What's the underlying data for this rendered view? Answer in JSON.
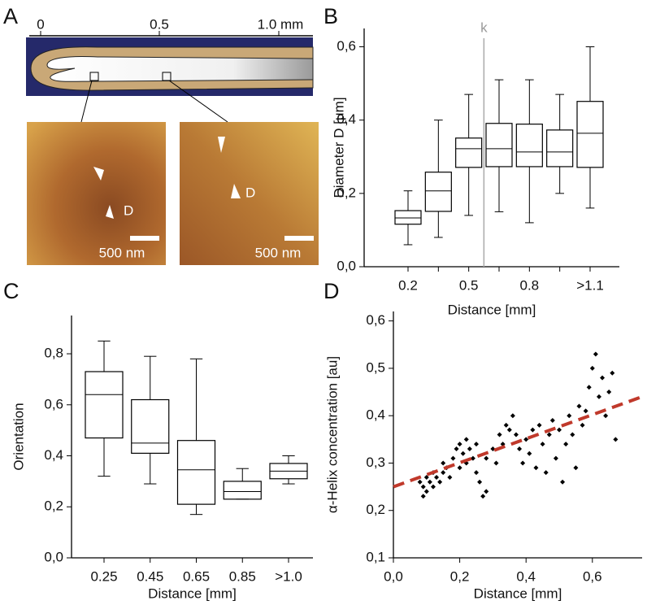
{
  "panel_labels": [
    "A",
    "B",
    "C",
    "D"
  ],
  "schematic": {
    "scale_labels": [
      "0",
      "0.5",
      "1.0 mm"
    ],
    "images": [
      {
        "marker": "D",
        "scale_bar": "500 nm"
      },
      {
        "marker": "D",
        "scale_bar": "500 nm"
      }
    ]
  },
  "chart_data": [
    {
      "type": "box",
      "ylabel": "Diameter D [μm]",
      "xlabel": "Distance [mm]",
      "color": "#000000",
      "categories": [
        "0.2",
        null,
        "0.5",
        null,
        "0.8",
        null,
        ">1.1"
      ],
      "boxes": [
        {
          "whisker_low": 0.06,
          "q1": 0.116,
          "median": 0.133,
          "q3": 0.153,
          "whisker_high": 0.207
        },
        {
          "whisker_low": 0.08,
          "q1": 0.151,
          "median": 0.207,
          "q3": 0.258,
          "whisker_high": 0.4
        },
        {
          "whisker_low": 0.14,
          "q1": 0.271,
          "median": 0.322,
          "q3": 0.351,
          "whisker_high": 0.47
        },
        {
          "whisker_low": 0.15,
          "q1": 0.273,
          "median": 0.322,
          "q3": 0.391,
          "whisker_high": 0.51
        },
        {
          "whisker_low": 0.12,
          "q1": 0.273,
          "median": 0.313,
          "q3": 0.389,
          "whisker_high": 0.51
        },
        {
          "whisker_low": 0.2,
          "q1": 0.273,
          "median": 0.313,
          "q3": 0.373,
          "whisker_high": 0.47
        },
        {
          "whisker_low": 0.16,
          "q1": 0.271,
          "median": 0.364,
          "q3": 0.451,
          "whisker_high": 0.6
        }
      ],
      "ylim": [
        0,
        0.65
      ],
      "yticks": [
        {
          "value": 0,
          "label": "0,0"
        },
        {
          "value": 0.2,
          "label": "0,2"
        },
        {
          "value": 0.4,
          "label": "0,4"
        },
        {
          "value": 0.6,
          "label": "0,6"
        }
      ],
      "annotation": "k"
    },
    {
      "type": "box",
      "ylabel": "Orientation",
      "xlabel": "Distance [mm]",
      "color": "#000000",
      "categories": [
        "0.25",
        "0.45",
        "0.65",
        "0.85",
        ">1.0"
      ],
      "boxes": [
        {
          "whisker_low": 0.32,
          "q1": 0.47,
          "median": 0.64,
          "q3": 0.73,
          "whisker_high": 0.85
        },
        {
          "whisker_low": 0.29,
          "q1": 0.41,
          "median": 0.45,
          "q3": 0.62,
          "whisker_high": 0.79
        },
        {
          "whisker_low": 0.17,
          "q1": 0.21,
          "median": 0.345,
          "q3": 0.46,
          "whisker_high": 0.78
        },
        {
          "whisker_low": 0.23,
          "q1": 0.23,
          "median": 0.26,
          "q3": 0.3,
          "whisker_high": 0.35
        },
        {
          "whisker_low": 0.29,
          "q1": 0.31,
          "median": 0.34,
          "q3": 0.37,
          "whisker_high": 0.4
        }
      ],
      "ylim": [
        0,
        0.95
      ],
      "yticks": [
        {
          "value": 0,
          "label": "0,0"
        },
        {
          "value": 0.2,
          "label": "0,2"
        },
        {
          "value": 0.4,
          "label": "0,4"
        },
        {
          "value": 0.6,
          "label": "0,6"
        },
        {
          "value": 0.8,
          "label": "0,8"
        }
      ]
    },
    {
      "type": "scatter",
      "ylabel": "α-Helix concentration [au]",
      "xlabel": "Distance [mm]",
      "color": "#000000",
      "x": [
        0.08,
        0.09,
        0.09,
        0.1,
        0.1,
        0.11,
        0.12,
        0.12,
        0.13,
        0.14,
        0.15,
        0.15,
        0.16,
        0.17,
        0.18,
        0.19,
        0.2,
        0.2,
        0.21,
        0.22,
        0.22,
        0.23,
        0.24,
        0.25,
        0.25,
        0.26,
        0.27,
        0.28,
        0.28,
        0.3,
        0.31,
        0.32,
        0.33,
        0.34,
        0.35,
        0.36,
        0.37,
        0.38,
        0.39,
        0.4,
        0.41,
        0.42,
        0.43,
        0.44,
        0.45,
        0.46,
        0.47,
        0.48,
        0.49,
        0.5,
        0.51,
        0.52,
        0.53,
        0.54,
        0.55,
        0.56,
        0.57,
        0.58,
        0.59,
        0.6,
        0.61,
        0.62,
        0.63,
        0.64,
        0.65,
        0.66,
        0.67
      ],
      "y": [
        0.26,
        0.25,
        0.23,
        0.27,
        0.24,
        0.26,
        0.25,
        0.28,
        0.27,
        0.26,
        0.28,
        0.3,
        0.29,
        0.27,
        0.31,
        0.33,
        0.34,
        0.29,
        0.32,
        0.35,
        0.3,
        0.33,
        0.31,
        0.28,
        0.34,
        0.26,
        0.23,
        0.24,
        0.31,
        0.33,
        0.3,
        0.36,
        0.34,
        0.38,
        0.37,
        0.4,
        0.36,
        0.33,
        0.3,
        0.35,
        0.32,
        0.37,
        0.29,
        0.38,
        0.34,
        0.28,
        0.36,
        0.39,
        0.31,
        0.37,
        0.26,
        0.34,
        0.4,
        0.36,
        0.29,
        0.42,
        0.38,
        0.41,
        0.46,
        0.5,
        0.53,
        0.44,
        0.48,
        0.4,
        0.45,
        0.49,
        0.35
      ],
      "trend_line": {
        "x": [
          0,
          0.75
        ],
        "y": [
          0.25,
          0.44
        ],
        "color": "#c0392b"
      },
      "xlim": [
        0,
        0.75
      ],
      "xticks": [
        {
          "value": 0,
          "label": "0,0"
        },
        {
          "value": 0.2,
          "label": "0,2"
        },
        {
          "value": 0.4,
          "label": "0,4"
        },
        {
          "value": 0.6,
          "label": "0,6"
        }
      ],
      "ylim": [
        0.1,
        0.62
      ],
      "yticks": [
        {
          "value": 0.1,
          "label": "0,1"
        },
        {
          "value": 0.2,
          "label": "0,2"
        },
        {
          "value": 0.3,
          "label": "0,3"
        },
        {
          "value": 0.4,
          "label": "0,4"
        },
        {
          "value": 0.5,
          "label": "0,5"
        },
        {
          "value": 0.6,
          "label": "0,6"
        }
      ]
    }
  ]
}
